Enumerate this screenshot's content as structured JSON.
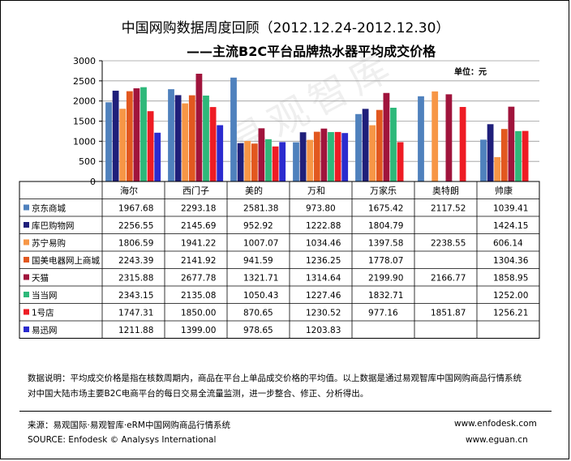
{
  "header": {
    "title": "中国网购数据周度回顾（2012.12.24-2012.12.30）",
    "subtitle": "——主流B2C平台品牌热水器平均成交价格",
    "unit": "单位：元"
  },
  "watermark": "易观智库",
  "chart_data": {
    "type": "bar",
    "categories": [
      "海尔",
      "西门子",
      "美的",
      "万和",
      "万家乐",
      "奥特朗",
      "帅康"
    ],
    "ylim": [
      0,
      3000
    ],
    "yticks": [
      0,
      500,
      1000,
      1500,
      2000,
      2500,
      3000
    ],
    "grid": true,
    "legend": "table",
    "series": [
      {
        "name": "京东商城",
        "color": "#4f81bd",
        "values": [
          1967.68,
          2293.18,
          2581.38,
          973.8,
          1675.42,
          2117.52,
          1039.41
        ],
        "labels": [
          "1967.68",
          "2293.18",
          "2581.38",
          "973.80",
          "1675.42",
          "2117.52",
          "1039.41"
        ]
      },
      {
        "name": "库巴购物网",
        "color": "#1f1f7a",
        "values": [
          2256.55,
          2145.69,
          952.92,
          1222.88,
          1804.79,
          null,
          1424.15
        ],
        "labels": [
          "2256.55",
          "2145.69",
          "952.92",
          "1222.88",
          "1804.79",
          "",
          "1424.15"
        ]
      },
      {
        "name": "苏宁易购",
        "color": "#f79646",
        "values": [
          1806.59,
          1941.22,
          1007.07,
          1034.46,
          1397.58,
          2238.55,
          606.14
        ],
        "labels": [
          "1806.59",
          "1941.22",
          "1007.07",
          "1034.46",
          "1397.58",
          "2238.55",
          "606.14"
        ]
      },
      {
        "name": "国美电器网上商城",
        "color": "#e2581f",
        "values": [
          2243.39,
          2141.92,
          941.59,
          1236.25,
          1778.07,
          null,
          1304.36
        ],
        "labels": [
          "2243.39",
          "2141.92",
          "941.59",
          "1236.25",
          "1778.07",
          "",
          "1304.36"
        ]
      },
      {
        "name": "天猫",
        "color": "#a0143c",
        "values": [
          2315.88,
          2677.78,
          1321.71,
          1314.64,
          2199.9,
          2166.77,
          1858.95
        ],
        "labels": [
          "2315.88",
          "2677.78",
          "1321.71",
          "1314.64",
          "2199.90",
          "2166.77",
          "1858.95"
        ]
      },
      {
        "name": "当当网",
        "color": "#2eb87a",
        "values": [
          2343.15,
          2135.08,
          1050.43,
          1227.46,
          1832.71,
          null,
          1252.0
        ],
        "labels": [
          "2343.15",
          "2135.08",
          "1050.43",
          "1227.46",
          "1832.71",
          "",
          "1252.00"
        ]
      },
      {
        "name": "1号店",
        "color": "#ee1c24",
        "values": [
          1747.31,
          1850.0,
          870.65,
          1230.52,
          977.16,
          1851.87,
          1256.21
        ],
        "labels": [
          "1747.31",
          "1850.00",
          "870.65",
          "1230.52",
          "977.16",
          "1851.87",
          "1256.21"
        ]
      },
      {
        "name": "易迅网",
        "color": "#2b2bcf",
        "values": [
          1211.88,
          1399.0,
          978.65,
          1203.83,
          null,
          null,
          null
        ],
        "labels": [
          "1211.88",
          "1399.00",
          "978.65",
          "1203.83",
          "",
          "",
          ""
        ]
      }
    ]
  },
  "notes": {
    "line1": "数据说明：平均成交价格是指在核数周期内，商品在平台上单品成交价格的平均值。以上数据是通过易观智库中国网购商品行情系统",
    "line2": "对中国大陆市场主要B2C电商平台的每日交易全流量监测，进一步整合、修正、分析得出。"
  },
  "footer": {
    "source_cn": "来源：易观国际·易观智库·eRM中国网购商品行情系统",
    "source_en": "SOURCE: Enfodesk © Analysys International",
    "url1": "www.enfodesk.com",
    "url2": "www.eguan.cn"
  }
}
